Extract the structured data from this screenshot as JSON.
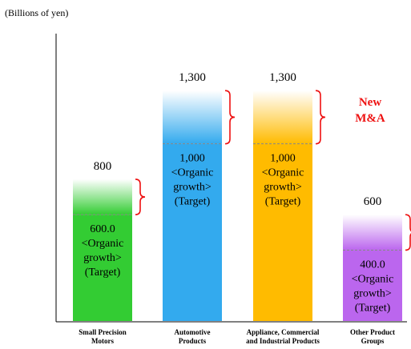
{
  "chart_data": {
    "type": "bar",
    "unit_label": "(Billions of yen)",
    "categories": [
      [
        "Small Precision",
        "Motors"
      ],
      [
        "Automotive",
        "Products"
      ],
      [
        "Appliance, Commercial",
        "and Industrial Products"
      ],
      [
        "Other Product",
        "Groups"
      ]
    ],
    "totals": [
      800,
      1300,
      1300,
      600
    ],
    "total_labels": [
      "800",
      "1,300",
      "1,300",
      "600"
    ],
    "organic_values": [
      600,
      1000,
      1000,
      400
    ],
    "organic_value_labels": [
      "600.0",
      "1,000",
      "1,000",
      "400.0"
    ],
    "organic_note": [
      "<Organic",
      "growth>",
      "(Target)"
    ],
    "annotation": [
      "New",
      "M&A"
    ],
    "ylim": [
      0,
      1450
    ],
    "colors": {
      "bars": [
        "#33cc33",
        "#33aaee",
        "#ffbb00",
        "#bb66ee"
      ],
      "annotation": "#ee1111",
      "brace": "#ee1111",
      "dashed_line": "#888888",
      "axis": "#000000"
    }
  }
}
